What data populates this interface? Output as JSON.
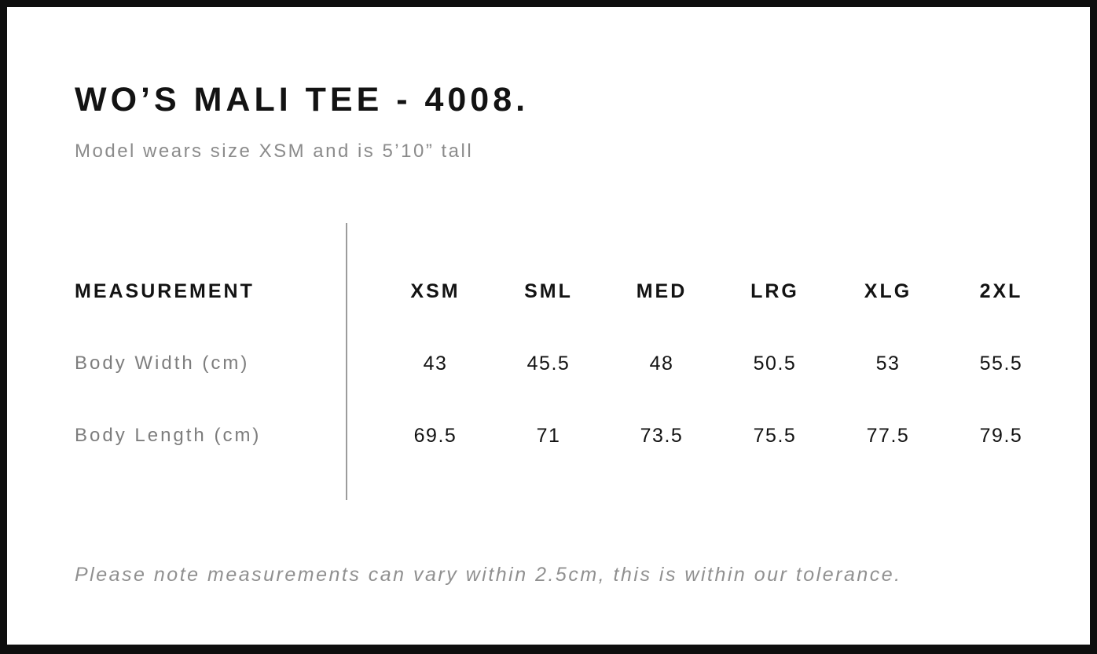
{
  "page": {
    "title": "WO’S MALI TEE - 4008.",
    "subtitle": "Model wears size XSM and is 5’10” tall",
    "footnote": "Please note measurements can vary within 2.5cm, this is within our tolerance."
  },
  "size_chart": {
    "measurement_header": "MEASUREMENT",
    "sizes": [
      "XSM",
      "SML",
      "MED",
      "LRG",
      "XLG",
      "2XL"
    ],
    "rows": [
      {
        "label": "Body Width (cm)",
        "values": [
          "43",
          "45.5",
          "48",
          "50.5",
          "53",
          "55.5"
        ]
      },
      {
        "label": "Body Length (cm)",
        "values": [
          "69.5",
          "71",
          "73.5",
          "75.5",
          "77.5",
          "79.5"
        ]
      }
    ]
  },
  "colors": {
    "page_border": "#0e0e0e",
    "heading_text": "#131313",
    "muted_text": "#8b8b8b",
    "row_label_text": "#7d7d7d",
    "value_text": "#131313",
    "divider": "#9c9c9c"
  }
}
